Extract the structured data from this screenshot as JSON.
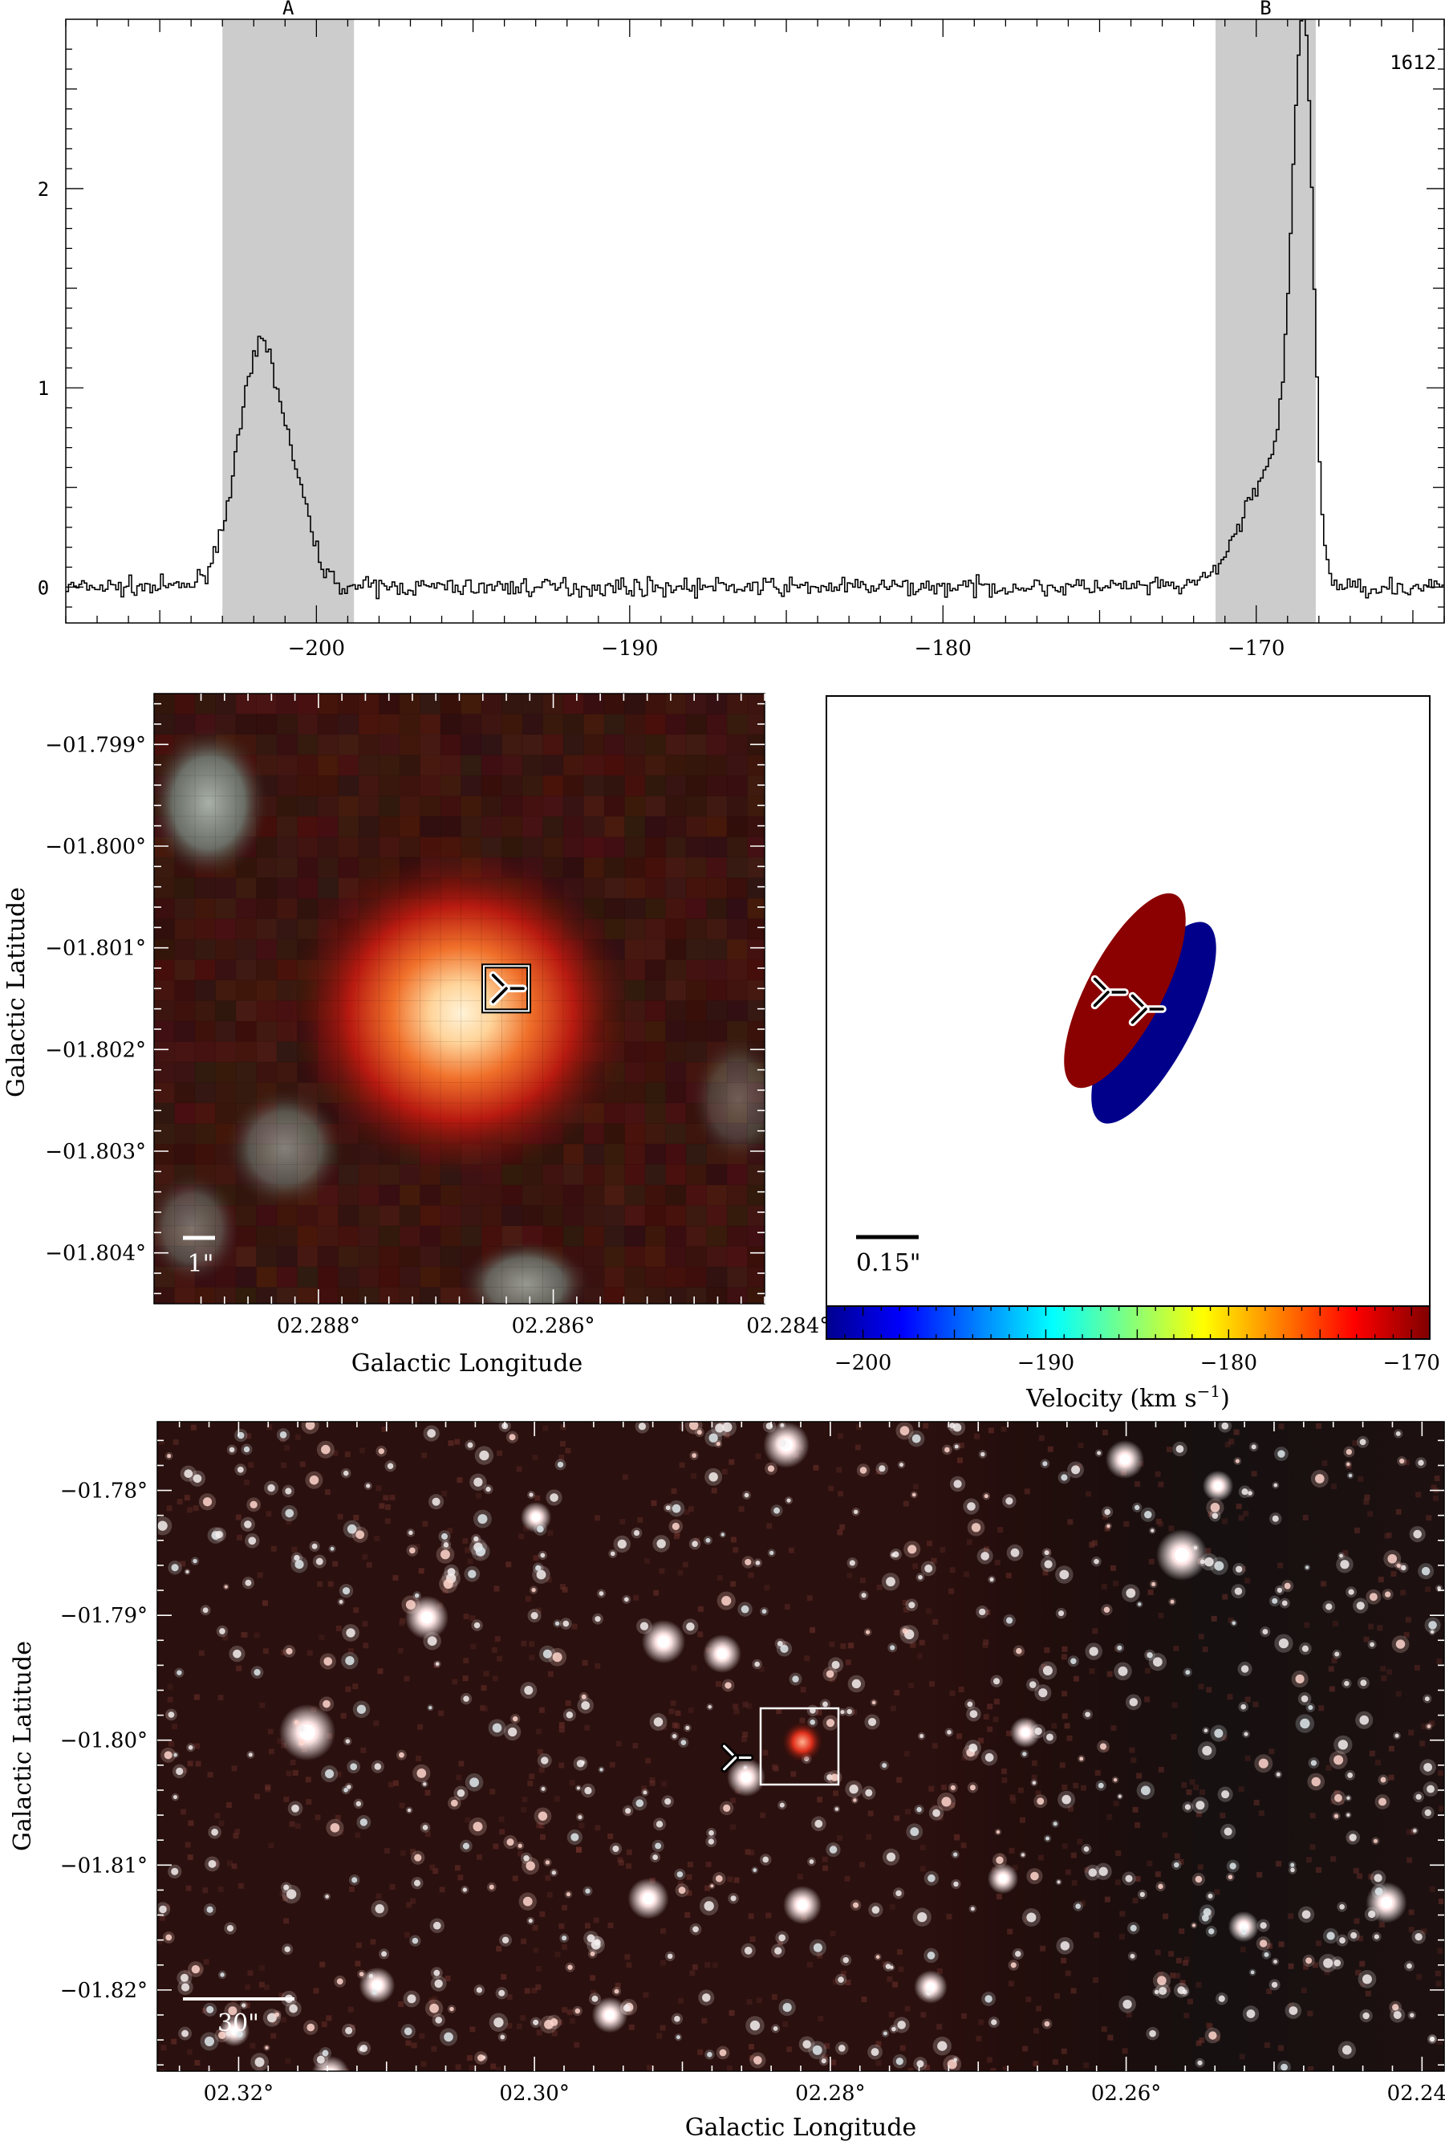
{
  "chart_data": [
    {
      "type": "line",
      "x_range": [
        -208,
        -164
      ],
      "y_range": [
        -0.18,
        2.85
      ],
      "x_ticks": [
        -200,
        -190,
        -180,
        -170
      ],
      "x_tick_labels": [
        "−200",
        "−190",
        "−180",
        "−170"
      ],
      "y_ticks": [
        0,
        1,
        2
      ],
      "y_tick_labels": [
        "0",
        "1",
        "2"
      ],
      "frequency_label": "1612",
      "shaded_regions": [
        {
          "label": "A",
          "x_range": [
            -203.0,
            -198.8
          ]
        },
        {
          "label": "B",
          "x_range": [
            -171.3,
            -168.1
          ]
        }
      ],
      "peaks": [
        {
          "center": -201.9,
          "amplitude": 0.95,
          "width": 0.55
        },
        {
          "center": -200.9,
          "amplitude": 0.55,
          "width": 0.6
        },
        {
          "center": -168.5,
          "amplitude": 2.65,
          "width": 0.28
        },
        {
          "center": -169.5,
          "amplitude": 0.6,
          "width": 0.7
        }
      ],
      "grid": false
    },
    {
      "type": "heatmap",
      "xlabel": "Galactic Longitude",
      "ylabel": "Galactic Latitude",
      "x_range": [
        2.2894,
        2.2842
      ],
      "y_range": [
        -1.8045,
        -1.7985
      ],
      "x_ticks": [
        2.288,
        2.286,
        2.284
      ],
      "x_tick_labels": [
        "02.288°",
        "02.286°",
        "02.284°"
      ],
      "y_ticks": [
        -1.799,
        -1.8,
        -1.801,
        -1.802,
        -1.803,
        -1.804
      ],
      "y_tick_labels": [
        "−01.799°",
        "−01.800°",
        "−01.801°",
        "−01.802°",
        "−01.803°",
        "−01.804°"
      ],
      "scale_bar_label": "1\"",
      "source": {
        "l": 2.2864,
        "b": -1.8014
      }
    },
    {
      "type": "scatter",
      "scale_bar_label": "0.15\"",
      "colorbar": {
        "label": "Velocity (km s",
        "label_sup": "−1",
        "label_end": ")",
        "range": [
          -202,
          -169
        ],
        "ticks": [
          -200,
          -190,
          -180,
          -170
        ],
        "tick_labels": [
          "−200",
          "−190",
          "−180",
          "−170"
        ],
        "colors": [
          "#00008f",
          "#0000ff",
          "#0080ff",
          "#00ffff",
          "#80ff80",
          "#ffff00",
          "#ff8000",
          "#ff0000",
          "#800000"
        ]
      },
      "components": [
        {
          "name": "",
          "color": "#8b0000",
          "velocity": -170
        },
        {
          "name": "",
          "color": "#00008b",
          "velocity": -201
        }
      ]
    },
    {
      "type": "heatmap",
      "xlabel": "Galactic Longitude",
      "ylabel": "Galactic Latitude",
      "x_range": [
        2.3255,
        2.2385
      ],
      "y_range": [
        -1.8265,
        -1.7745
      ],
      "x_ticks": [
        2.32,
        2.3,
        2.28,
        2.26,
        2.24
      ],
      "x_tick_labels": [
        "02.32°",
        "02.30°",
        "02.28°",
        "02.26°",
        "02.24°"
      ],
      "y_ticks": [
        -1.78,
        -1.79,
        -1.8,
        -1.81,
        -1.82
      ],
      "y_tick_labels": [
        "−01.78°",
        "−01.79°",
        "−01.80°",
        "−01.81°",
        "−01.82°"
      ],
      "scale_bar_label": "30\"",
      "source": {
        "l": 2.2864,
        "b": -1.8014
      }
    }
  ]
}
